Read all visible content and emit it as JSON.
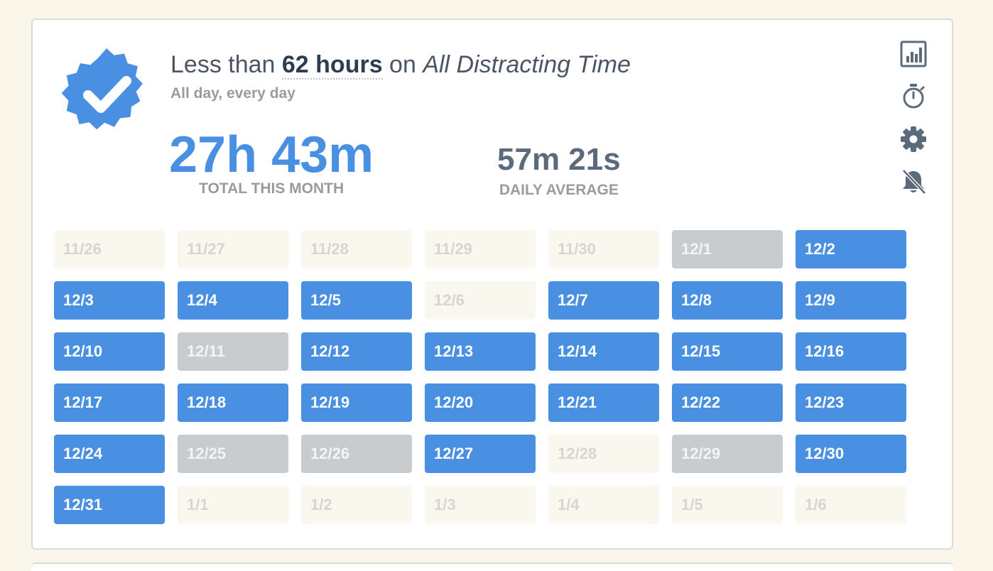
{
  "goal": {
    "title_prefix": "Less than ",
    "title_amount": "62 hours",
    "title_middle": " on ",
    "title_category": "All Distracting Time",
    "schedule": "All day, every day",
    "total_value": "27h 43m",
    "total_label": "TOTAL THIS MONTH",
    "average_value": "57m 21s",
    "average_label": "DAILY AVERAGE"
  },
  "colors": {
    "accent": "#4a90e2",
    "no_data": "#c9ccce",
    "empty": "#faf8ee",
    "background": "#faf7ea"
  },
  "icons": [
    "chart-icon",
    "stopwatch-icon",
    "gear-icon",
    "bell-off-icon"
  ],
  "days": [
    {
      "label": "11/26",
      "state": "outside"
    },
    {
      "label": "11/27",
      "state": "outside"
    },
    {
      "label": "11/28",
      "state": "outside"
    },
    {
      "label": "11/29",
      "state": "outside"
    },
    {
      "label": "11/30",
      "state": "outside"
    },
    {
      "label": "12/1",
      "state": "nodata"
    },
    {
      "label": "12/2",
      "state": "met"
    },
    {
      "label": "12/3",
      "state": "met"
    },
    {
      "label": "12/4",
      "state": "met"
    },
    {
      "label": "12/5",
      "state": "met"
    },
    {
      "label": "12/6",
      "state": "outside"
    },
    {
      "label": "12/7",
      "state": "met"
    },
    {
      "label": "12/8",
      "state": "met"
    },
    {
      "label": "12/9",
      "state": "met"
    },
    {
      "label": "12/10",
      "state": "met"
    },
    {
      "label": "12/11",
      "state": "nodata"
    },
    {
      "label": "12/12",
      "state": "met"
    },
    {
      "label": "12/13",
      "state": "met"
    },
    {
      "label": "12/14",
      "state": "met"
    },
    {
      "label": "12/15",
      "state": "met"
    },
    {
      "label": "12/16",
      "state": "met"
    },
    {
      "label": "12/17",
      "state": "met"
    },
    {
      "label": "12/18",
      "state": "met"
    },
    {
      "label": "12/19",
      "state": "met"
    },
    {
      "label": "12/20",
      "state": "met"
    },
    {
      "label": "12/21",
      "state": "met"
    },
    {
      "label": "12/22",
      "state": "met"
    },
    {
      "label": "12/23",
      "state": "met"
    },
    {
      "label": "12/24",
      "state": "met"
    },
    {
      "label": "12/25",
      "state": "nodata"
    },
    {
      "label": "12/26",
      "state": "nodata"
    },
    {
      "label": "12/27",
      "state": "met"
    },
    {
      "label": "12/28",
      "state": "outside"
    },
    {
      "label": "12/29",
      "state": "nodata"
    },
    {
      "label": "12/30",
      "state": "met"
    },
    {
      "label": "12/31",
      "state": "met"
    },
    {
      "label": "1/1",
      "state": "future"
    },
    {
      "label": "1/2",
      "state": "future"
    },
    {
      "label": "1/3",
      "state": "future"
    },
    {
      "label": "1/4",
      "state": "future"
    },
    {
      "label": "1/5",
      "state": "future"
    },
    {
      "label": "1/6",
      "state": "future"
    }
  ]
}
